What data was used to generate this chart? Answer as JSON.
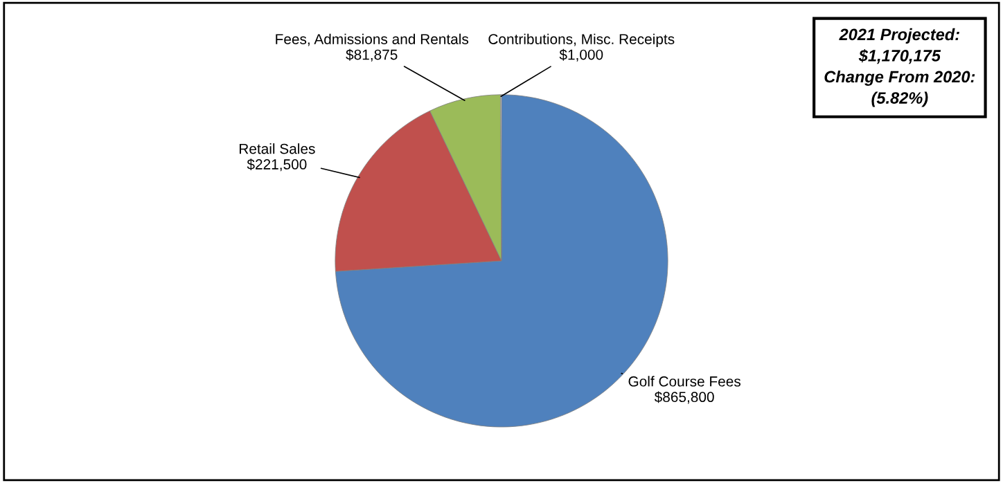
{
  "chart_data": {
    "type": "pie",
    "categories": [
      "Golf Course Fees",
      "Retail Sales",
      "Fees, Admissions and Rentals",
      "Contributions, Misc. Receipts"
    ],
    "values": [
      865800,
      221500,
      81875,
      1000
    ],
    "value_labels": [
      "$865,800",
      "$221,500",
      "$81,875",
      "$1,000"
    ],
    "colors": [
      "#4f81bd",
      "#c0504d",
      "#9bbb59",
      "#f2f2f2"
    ],
    "annotations": [
      "2021 Projected:",
      "$1,170,175",
      "Change From 2020:",
      "(5.82%)"
    ],
    "legend": false
  }
}
